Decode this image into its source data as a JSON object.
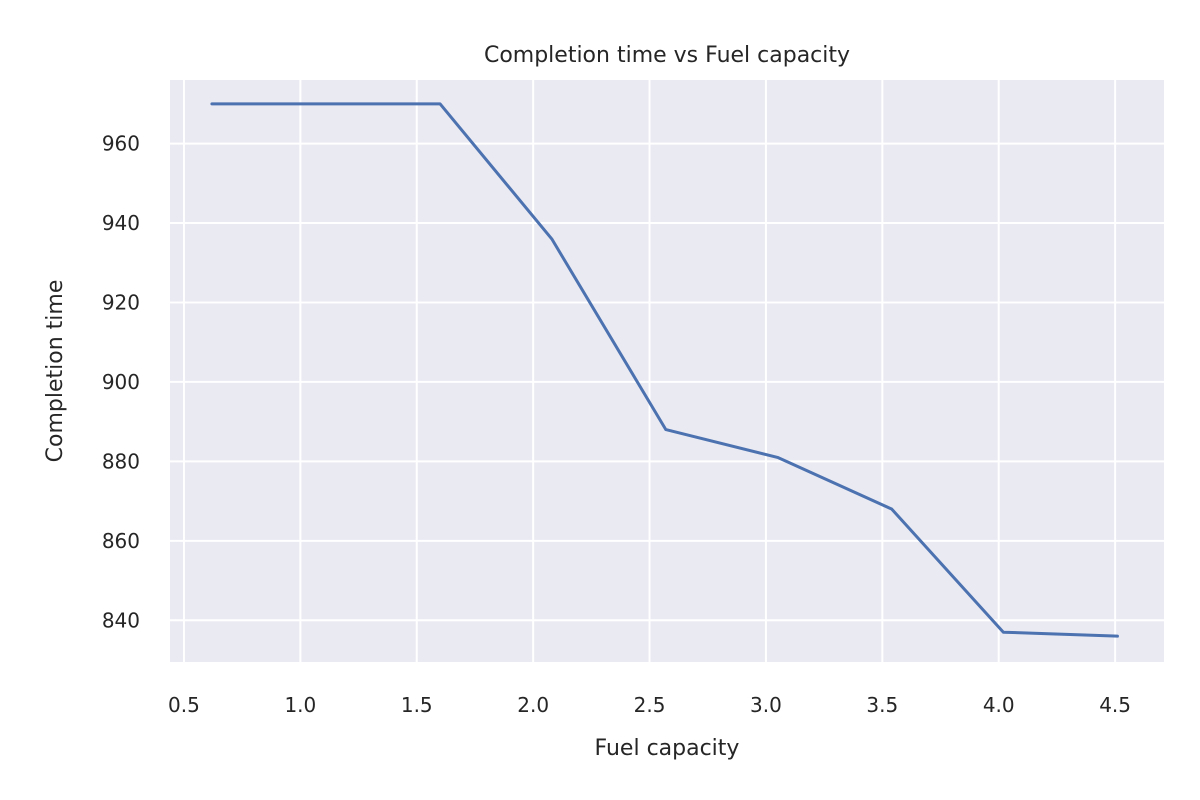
{
  "chart_data": {
    "type": "line",
    "title": "Completion time vs Fuel capacity",
    "xlabel": "Fuel capacity",
    "ylabel": "Completion time",
    "xlim": [
      0.44,
      4.71
    ],
    "ylim": [
      829.5,
      976
    ],
    "x_ticks": [
      0.5,
      1.0,
      1.5,
      2.0,
      2.5,
      3.0,
      3.5,
      4.0,
      4.5
    ],
    "x_tick_labels": [
      "0.5",
      "1.0",
      "1.5",
      "2.0",
      "2.5",
      "3.0",
      "3.5",
      "4.0",
      "4.5"
    ],
    "y_ticks": [
      840,
      860,
      880,
      900,
      920,
      940,
      960
    ],
    "y_tick_labels": [
      "840",
      "860",
      "880",
      "900",
      "920",
      "940",
      "960"
    ],
    "grid": true,
    "background": "#eaeaf2",
    "grid_color": "#ffffff",
    "series": [
      {
        "color": "#4c72b0",
        "x": [
          0.62,
          1.6,
          2.08,
          2.57,
          3.05,
          3.54,
          4.02,
          4.51
        ],
        "y": [
          970,
          970,
          936,
          888,
          881,
          868,
          837,
          836
        ]
      }
    ]
  }
}
